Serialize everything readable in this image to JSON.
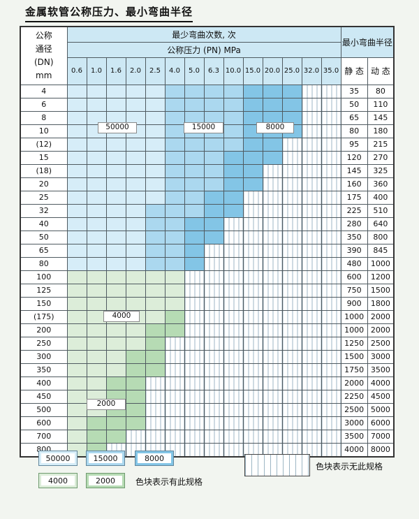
{
  "title": "金属软管公称压力、最小弯曲半径",
  "table": {
    "dn_header": [
      "公称",
      "通径",
      "(DN)",
      "mm"
    ],
    "bend_cycles_header": "最少弯曲次数, 次",
    "pressure_header": "公称压力 (PN) MPa",
    "pressures": [
      "0.6",
      "1.0",
      "1.6",
      "2.0",
      "2.5",
      "4.0",
      "5.0",
      "6.3",
      "10.0",
      "15.0",
      "20.0",
      "25.0",
      "32.0",
      "35.0"
    ],
    "radius_header": "最小弯曲半径",
    "static_label": "静 态",
    "dynamic_label": "动 态",
    "cell_legend": {
      "A": "50000",
      "B": "15000",
      "C": "8000",
      "D": "4000",
      "E": "2000",
      "X": "无此规格"
    },
    "rows": [
      {
        "dn": "4",
        "cells": "AAAAABBBBCCCXX",
        "static": "35",
        "dynamic": "80"
      },
      {
        "dn": "6",
        "cells": "AAAAABBBBCCCXX",
        "static": "50",
        "dynamic": "110"
      },
      {
        "dn": "8",
        "cells": "AAAAABBBBCCCXX",
        "static": "65",
        "dynamic": "145"
      },
      {
        "dn": "10",
        "cells": "AAAAABBBBCCCXX",
        "static": "80",
        "dynamic": "180"
      },
      {
        "dn": "(12)",
        "cells": "AAAAABBBBCCXXX",
        "static": "95",
        "dynamic": "215"
      },
      {
        "dn": "15",
        "cells": "AAAAABBBCCCXXX",
        "static": "120",
        "dynamic": "270"
      },
      {
        "dn": "(18)",
        "cells": "AAAAABBBCCXXXX",
        "static": "145",
        "dynamic": "325"
      },
      {
        "dn": "20",
        "cells": "AAAAABBBCCXXXX",
        "static": "160",
        "dynamic": "360"
      },
      {
        "dn": "25",
        "cells": "AAAAABBCCXXXXX",
        "static": "175",
        "dynamic": "400"
      },
      {
        "dn": "32",
        "cells": "AAAABBBCCXXXXX",
        "static": "225",
        "dynamic": "510"
      },
      {
        "dn": "40",
        "cells": "AAAABBCCXXXXXX",
        "static": "280",
        "dynamic": "640"
      },
      {
        "dn": "50",
        "cells": "AAAABBCCXXXXXX",
        "static": "350",
        "dynamic": "800"
      },
      {
        "dn": "65",
        "cells": "AAAABBCXXXXXXX",
        "static": "390",
        "dynamic": "845"
      },
      {
        "dn": "80",
        "cells": "AAAABBCXXXXXXX",
        "static": "480",
        "dynamic": "1000"
      },
      {
        "dn": "100",
        "cells": "DDDDDDXXXXXXXX",
        "static": "600",
        "dynamic": "1200"
      },
      {
        "dn": "125",
        "cells": "DDDDDDXXXXXXXX",
        "static": "750",
        "dynamic": "1500"
      },
      {
        "dn": "150",
        "cells": "DDDDDDXXXXXXXX",
        "static": "900",
        "dynamic": "1800"
      },
      {
        "dn": "(175)",
        "cells": "DDDDDEXXXXXXXX",
        "static": "1000",
        "dynamic": "2000"
      },
      {
        "dn": "200",
        "cells": "DDDDEEXXXXXXXX",
        "static": "1000",
        "dynamic": "2000"
      },
      {
        "dn": "250",
        "cells": "DDDDEXXXXXXXXX",
        "static": "1250",
        "dynamic": "2500"
      },
      {
        "dn": "300",
        "cells": "DDDEEXXXXXXXXX",
        "static": "1500",
        "dynamic": "3000"
      },
      {
        "dn": "350",
        "cells": "DDDEEXXXXXXXXX",
        "static": "1750",
        "dynamic": "3500"
      },
      {
        "dn": "400",
        "cells": "DDEEXXXXXXXXXX",
        "static": "2000",
        "dynamic": "4000"
      },
      {
        "dn": "450",
        "cells": "DDEEXXXXXXXXXX",
        "static": "2250",
        "dynamic": "4500"
      },
      {
        "dn": "500",
        "cells": "DDEEXXXXXXXXXX",
        "static": "2500",
        "dynamic": "5000"
      },
      {
        "dn": "600",
        "cells": "DEEEXXXXXXXXXX",
        "static": "3000",
        "dynamic": "6000"
      },
      {
        "dn": "700",
        "cells": "DEEXXXXXXXXXXX",
        "static": "3500",
        "dynamic": "7000"
      },
      {
        "dn": "800",
        "cells": "DEXXXXXXXXXXXX",
        "static": "4000",
        "dynamic": "8000"
      }
    ],
    "overlays": [
      {
        "text": "50000"
      },
      {
        "text": "15000"
      },
      {
        "text": "8000"
      },
      {
        "text": "4000"
      },
      {
        "text": "2000"
      }
    ]
  },
  "legend": {
    "items": [
      {
        "value": "50000"
      },
      {
        "value": "15000"
      },
      {
        "value": "8000"
      },
      {
        "value": "4000"
      },
      {
        "value": "2000"
      }
    ],
    "has_spec_note": "色块表示有此规格",
    "no_spec_note": "色块表示无此规格"
  },
  "colors": {
    "cycles_50000": "#d6edf8",
    "cycles_15000": "#abd8ef",
    "cycles_8000": "#83c5e6",
    "cycles_4000": "#dcedd9",
    "cycles_2000": "#b6dbb4",
    "hatch_line": "#9db6c4",
    "header_blue": "#cde8f4"
  }
}
